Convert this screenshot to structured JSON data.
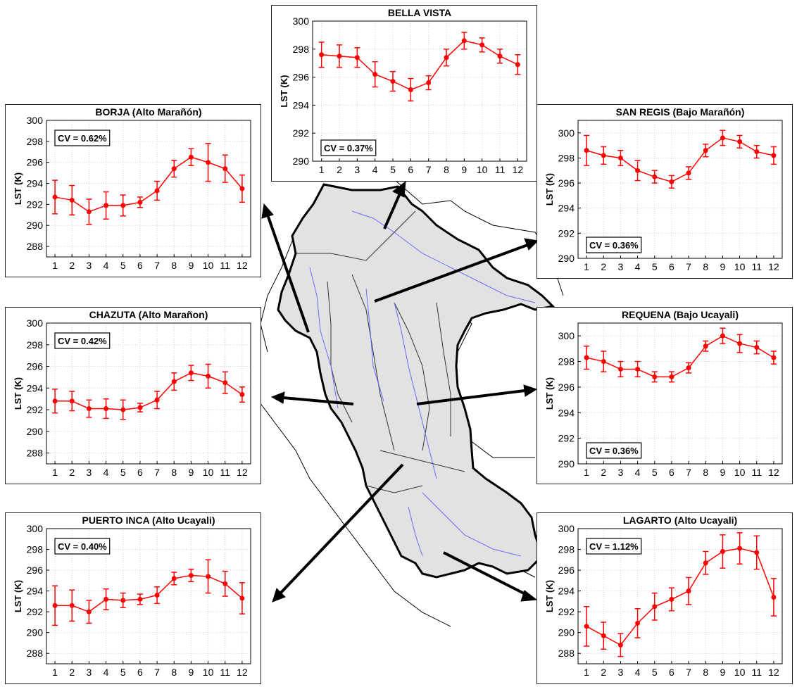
{
  "colors": {
    "series": "#ff0000",
    "basin_fill": "#e0e0e0",
    "river": "#6a6aff",
    "arrow": "#000000"
  },
  "chart_data": [
    {
      "id": "bella-vista",
      "type": "line",
      "title": "BELLA VISTA",
      "ylabel": "LST  (K)",
      "cv": "CV = 0.37%",
      "x": [
        1,
        2,
        3,
        4,
        5,
        6,
        7,
        8,
        9,
        10,
        11,
        12
      ],
      "values": [
        297.6,
        297.5,
        297.4,
        296.2,
        295.7,
        295.1,
        295.6,
        297.4,
        298.6,
        298.3,
        297.5,
        296.9
      ],
      "err": [
        0.9,
        0.8,
        0.7,
        0.9,
        0.7,
        0.8,
        0.5,
        0.6,
        0.6,
        0.5,
        0.5,
        0.7
      ],
      "ylim": [
        290,
        300
      ],
      "yticks": [
        290,
        292,
        294,
        296,
        298,
        300
      ],
      "grid": true
    },
    {
      "id": "borja",
      "type": "line",
      "title": "BORJA (Alto Marañón)",
      "ylabel": "LST  (K)",
      "cv": "CV = 0.62%",
      "x": [
        1,
        2,
        3,
        4,
        5,
        6,
        7,
        8,
        9,
        10,
        11,
        12
      ],
      "values": [
        292.7,
        292.4,
        291.3,
        291.9,
        291.9,
        292.2,
        293.3,
        295.4,
        296.5,
        296.0,
        295.4,
        293.5
      ],
      "err": [
        1.6,
        1.4,
        1.2,
        1.3,
        1.0,
        0.5,
        0.9,
        0.8,
        0.8,
        1.8,
        1.3,
        1.3
      ],
      "ylim": [
        287,
        300
      ],
      "yticks": [
        288,
        290,
        292,
        294,
        296,
        298,
        300
      ],
      "grid": true
    },
    {
      "id": "san-regis",
      "type": "line",
      "title": "SAN REGIS (Bajo Marañón)",
      "ylabel": "LST  (K)",
      "cv": "CV = 0.36%",
      "x": [
        1,
        2,
        3,
        4,
        5,
        6,
        7,
        8,
        9,
        10,
        11,
        12
      ],
      "values": [
        298.6,
        298.2,
        298.0,
        297.0,
        296.5,
        296.1,
        296.8,
        298.6,
        299.6,
        299.3,
        298.5,
        298.2
      ],
      "err": [
        1.2,
        0.7,
        0.6,
        0.8,
        0.5,
        0.5,
        0.5,
        0.5,
        0.6,
        0.5,
        0.5,
        0.7
      ],
      "ylim": [
        290,
        301
      ],
      "yticks": [
        290,
        292,
        294,
        296,
        298,
        300
      ],
      "grid": true
    },
    {
      "id": "chazuta",
      "type": "line",
      "title": "CHAZUTA (Alto Marañon)",
      "ylabel": "LST  (K)",
      "cv": "CV = 0.42%",
      "x": [
        1,
        2,
        3,
        4,
        5,
        6,
        7,
        8,
        9,
        10,
        11,
        12
      ],
      "values": [
        292.8,
        292.8,
        292.1,
        292.1,
        292.0,
        292.2,
        292.9,
        294.6,
        295.4,
        295.1,
        294.5,
        293.4
      ],
      "err": [
        1.1,
        0.9,
        0.8,
        0.9,
        0.9,
        0.4,
        0.8,
        0.8,
        0.7,
        1.1,
        1.0,
        0.7
      ],
      "ylim": [
        287,
        300
      ],
      "yticks": [
        288,
        290,
        292,
        294,
        296,
        298,
        300
      ],
      "grid": true
    },
    {
      "id": "requena",
      "type": "line",
      "title": "REQUENA (Bajo Ucayali)",
      "ylabel": "LST  (K)",
      "cv": "CV = 0.36%",
      "x": [
        1,
        2,
        3,
        4,
        5,
        6,
        7,
        8,
        9,
        10,
        11,
        12
      ],
      "values": [
        298.3,
        298.0,
        297.4,
        297.4,
        296.8,
        296.8,
        297.5,
        299.2,
        300.0,
        299.4,
        299.1,
        298.3
      ],
      "err": [
        0.9,
        0.8,
        0.6,
        0.6,
        0.4,
        0.4,
        0.4,
        0.4,
        0.6,
        0.7,
        0.5,
        0.5
      ],
      "ylim": [
        290,
        301
      ],
      "yticks": [
        290,
        292,
        294,
        296,
        298,
        300
      ],
      "grid": true
    },
    {
      "id": "puerto-inca",
      "type": "line",
      "title": "PUERTO INCA (Alto Ucayali)",
      "ylabel": "LST  (K)",
      "cv": "CV = 0.40%",
      "x": [
        1,
        2,
        3,
        4,
        5,
        6,
        7,
        8,
        9,
        10,
        11,
        12
      ],
      "values": [
        292.6,
        292.6,
        292.0,
        293.2,
        293.1,
        293.2,
        293.6,
        295.2,
        295.5,
        295.4,
        294.7,
        293.3
      ],
      "err": [
        1.9,
        1.5,
        1.1,
        1.0,
        0.7,
        0.5,
        0.8,
        0.6,
        0.6,
        1.6,
        1.2,
        1.5
      ],
      "ylim": [
        287,
        300
      ],
      "yticks": [
        288,
        290,
        292,
        294,
        296,
        298,
        300
      ],
      "grid": true
    },
    {
      "id": "lagarto",
      "type": "line",
      "title": "LAGARTO (Alto Ucayali)",
      "ylabel": "LST  (K)",
      "cv": "CV = 1.12%",
      "x": [
        1,
        2,
        3,
        4,
        5,
        6,
        7,
        8,
        9,
        10,
        11,
        12
      ],
      "values": [
        290.6,
        289.7,
        288.8,
        290.9,
        292.5,
        293.2,
        294.0,
        296.7,
        297.8,
        298.1,
        297.7,
        293.4
      ],
      "err": [
        1.9,
        1.3,
        1.1,
        1.4,
        1.3,
        1.1,
        1.3,
        1.1,
        1.6,
        1.5,
        1.6,
        1.8
      ],
      "ylim": [
        287,
        300
      ],
      "yticks": [
        288,
        290,
        292,
        294,
        296,
        298,
        300
      ],
      "grid": true
    }
  ]
}
